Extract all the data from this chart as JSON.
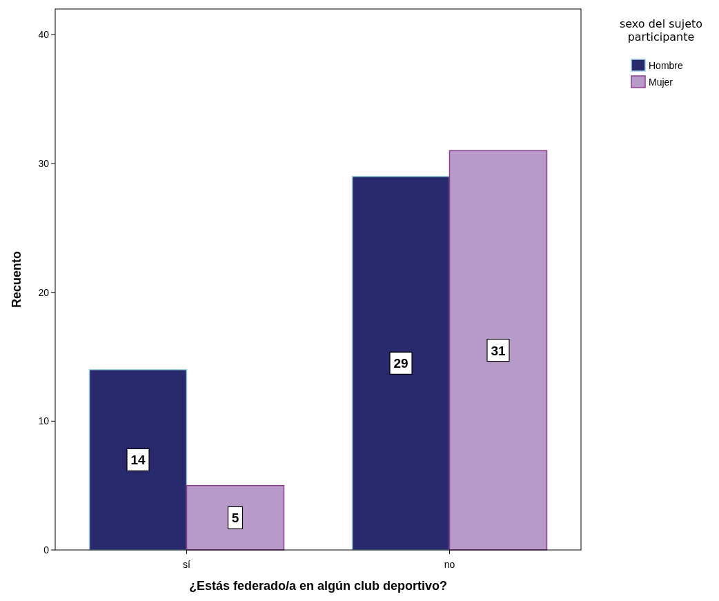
{
  "chart_data": {
    "type": "bar",
    "xlabel": "¿Estás federado/a en algún club deportivo?",
    "ylabel": "Recuento",
    "legend_title": "sexo del sujeto participante",
    "categories": [
      "sí",
      "no"
    ],
    "series": [
      {
        "name": "Hombre",
        "color": "#29296e",
        "values": [
          14,
          29
        ]
      },
      {
        "name": "Mujer",
        "color": "#b89ac8",
        "values": [
          5,
          31
        ]
      }
    ],
    "ylim": [
      0,
      42
    ],
    "yticks": [
      0,
      10,
      20,
      30,
      40
    ],
    "grid": false,
    "legend": "top right",
    "data_labels": true
  }
}
